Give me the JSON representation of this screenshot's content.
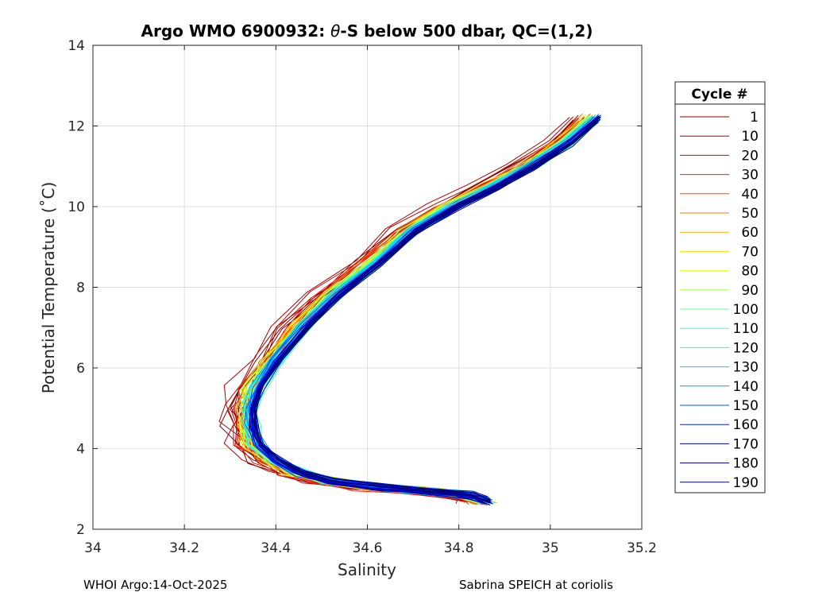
{
  "chart_data": {
    "type": "line",
    "title_prefix": "Argo WMO 6900932: ",
    "title_theta": "θ",
    "title_suffix": "-S below 500 dbar,  QC=(1,2)",
    "xlabel": "Salinity",
    "ylabel": "Potential Temperature (˚C)",
    "xlim": [
      34,
      35.2
    ],
    "ylim": [
      2,
      14
    ],
    "xticks": [
      34,
      34.2,
      34.4,
      34.6,
      34.8,
      35,
      35.2
    ],
    "xtick_labels": [
      "34",
      "34.2",
      "34.4",
      "34.6",
      "34.8",
      "35",
      "35.2"
    ],
    "yticks": [
      2,
      4,
      6,
      8,
      10,
      12,
      14
    ],
    "ytick_labels": [
      "2",
      "4",
      "6",
      "8",
      "10",
      "12",
      "14"
    ],
    "grid": true,
    "legend_title": "Cycle #",
    "legend_placement": "right-outside",
    "series": [
      {
        "name": "1",
        "color": "#800000",
        "offset": -0.035
      },
      {
        "name": "10",
        "color": "#b00000",
        "offset": -0.03
      },
      {
        "name": "20",
        "color": "#d80000",
        "offset": -0.026
      },
      {
        "name": "30",
        "color": "#ff1a00",
        "offset": -0.022
      },
      {
        "name": "40",
        "color": "#ff4400",
        "offset": -0.019
      },
      {
        "name": "50",
        "color": "#ff7a00",
        "offset": -0.016
      },
      {
        "name": "60",
        "color": "#ffae00",
        "offset": -0.013
      },
      {
        "name": "70",
        "color": "#ffde00",
        "offset": -0.011
      },
      {
        "name": "80",
        "color": "#e6ff1a",
        "offset": -0.009
      },
      {
        "name": "90",
        "color": "#a6ff59",
        "offset": -0.007
      },
      {
        "name": "100",
        "color": "#66ff99",
        "offset": -0.005
      },
      {
        "name": "110",
        "color": "#33ffcc",
        "offset": -0.003
      },
      {
        "name": "120",
        "color": "#00ffff",
        "offset": -0.001
      },
      {
        "name": "130",
        "color": "#00ccff",
        "offset": 0.0
      },
      {
        "name": "140",
        "color": "#0099ff",
        "offset": 0.001
      },
      {
        "name": "150",
        "color": "#0055ff",
        "offset": 0.002
      },
      {
        "name": "160",
        "color": "#0022ff",
        "offset": 0.003
      },
      {
        "name": "170",
        "color": "#0000d8",
        "offset": 0.004
      },
      {
        "name": "180",
        "color": "#0000a0",
        "offset": 0.005
      },
      {
        "name": "190",
        "color": "#000070",
        "offset": 0.006
      }
    ],
    "mean_profile": {
      "salinity": [
        34.86,
        34.82,
        34.74,
        34.62,
        34.52,
        34.45,
        34.4,
        34.36,
        34.345,
        34.345,
        34.36,
        34.4,
        34.46,
        34.53,
        34.62,
        34.7,
        34.79,
        34.88,
        34.96,
        35.04,
        35.1
      ],
      "theta": [
        2.7,
        2.85,
        2.95,
        3.05,
        3.2,
        3.4,
        3.7,
        4.1,
        4.6,
        5.0,
        5.5,
        6.2,
        7.0,
        7.8,
        8.6,
        9.4,
        10.0,
        10.5,
        11.0,
        11.6,
        12.2
      ]
    }
  },
  "footer": {
    "left": "WHOI Argo:14-Oct-2025",
    "right": "Sabrina SPEICH at coriolis"
  }
}
